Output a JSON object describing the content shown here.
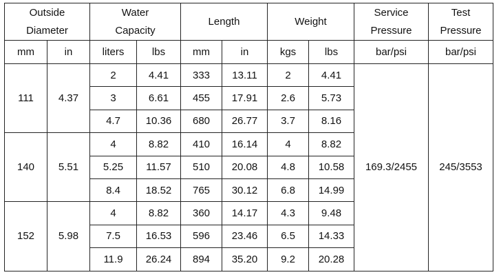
{
  "header": {
    "groups": [
      {
        "lines": [
          "Outside",
          "Diameter"
        ],
        "units": [
          "mm",
          "in"
        ]
      },
      {
        "lines": [
          "Water",
          "Capacity"
        ],
        "units": [
          "liters",
          "lbs"
        ]
      },
      {
        "lines": [
          "Length"
        ],
        "units": [
          "mm",
          "in"
        ]
      },
      {
        "lines": [
          "Weight"
        ],
        "units": [
          "kgs",
          "lbs"
        ]
      },
      {
        "lines": [
          "Service",
          "Pressure"
        ],
        "units": [
          "bar/psi"
        ]
      },
      {
        "lines": [
          "Test",
          "Pressure"
        ],
        "units": [
          "bar/psi"
        ]
      }
    ]
  },
  "body": {
    "groups": [
      {
        "mm": "111",
        "in": "4.37",
        "rows": [
          [
            "2",
            "4.41",
            "333",
            "13.11",
            "2",
            "4.41"
          ],
          [
            "3",
            "6.61",
            "455",
            "17.91",
            "2.6",
            "5.73"
          ],
          [
            "4.7",
            "10.36",
            "680",
            "26.77",
            "3.7",
            "8.16"
          ]
        ]
      },
      {
        "mm": "140",
        "in": "5.51",
        "rows": [
          [
            "4",
            "8.82",
            "410",
            "16.14",
            "4",
            "8.82"
          ],
          [
            "5.25",
            "11.57",
            "510",
            "20.08",
            "4.8",
            "10.58"
          ],
          [
            "8.4",
            "18.52",
            "765",
            "30.12",
            "6.8",
            "14.99"
          ]
        ]
      },
      {
        "mm": "152",
        "in": "5.98",
        "rows": [
          [
            "4",
            "8.82",
            "360",
            "14.17",
            "4.3",
            "9.48"
          ],
          [
            "7.5",
            "16.53",
            "596",
            "23.46",
            "6.5",
            "14.33"
          ],
          [
            "11.9",
            "26.24",
            "894",
            "35.20",
            "9.2",
            "20.28"
          ]
        ]
      }
    ],
    "service_pressure": "169.3/2455",
    "test_pressure": "245/3553"
  }
}
